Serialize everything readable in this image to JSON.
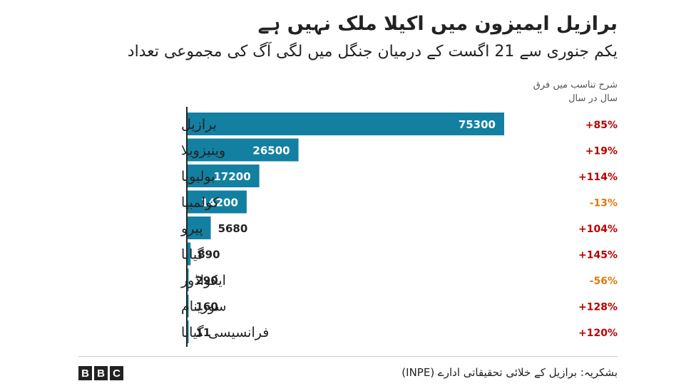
{
  "header": {
    "title": "برازیل ایمیزون میں اکیلا ملک نہیں ہے",
    "subtitle": "یکم جنوری سے 21 اگست کے درمیان جنگل میں لگی آگ کی مجموعی تعداد",
    "change_header_line1": "شرح تناسب میں فرق",
    "change_header_line2": "سال در سال"
  },
  "footer": {
    "source": "بشکریہ: برازیل کے خلائی تحقیقاتی ادارے (INPE)",
    "logo": [
      "B",
      "B",
      "C"
    ]
  },
  "colors": {
    "bar": "#1380a1",
    "positive_change": "#b80000",
    "negative_change": "#e07a10"
  },
  "chart_data": {
    "type": "bar",
    "orientation": "horizontal",
    "categories": [
      "برازیل",
      "وینیزویلا",
      "بولیویا",
      "کولمبیا",
      "پیرو",
      "گیانا",
      "ایکواڈور",
      "سورینام",
      "فرانسیسی گیانا"
    ],
    "values": [
      75300,
      26500,
      17200,
      14200,
      5680,
      890,
      290,
      160,
      11
    ],
    "value_labels": [
      "75300",
      "26500",
      "17200",
      "14200",
      "5680",
      "890",
      "290",
      "160",
      "11"
    ],
    "change": [
      "+85%",
      "+19%",
      "+114%",
      "-13%",
      "+104%",
      "+145%",
      "-56%",
      "+128%",
      "+120%"
    ],
    "xlim": [
      0,
      75300
    ]
  }
}
